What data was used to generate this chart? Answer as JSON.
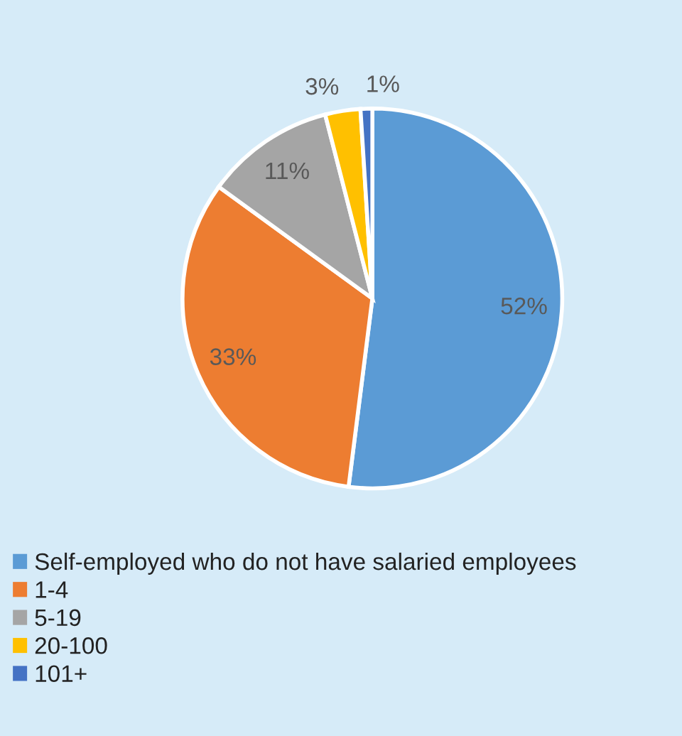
{
  "chart_data": {
    "type": "pie",
    "categories": [
      "Self-employed who do not have salaried employees",
      "1-4",
      "5-19",
      "20-100",
      "101+"
    ],
    "values": [
      52,
      33,
      11,
      3,
      1
    ],
    "colors": [
      "#5b9bd5",
      "#ed7d31",
      "#a5a5a5",
      "#ffc000",
      "#4472c4"
    ],
    "value_labels": [
      "52%",
      "33%",
      "11%",
      "3%",
      "1%"
    ],
    "legend": "bottom"
  }
}
